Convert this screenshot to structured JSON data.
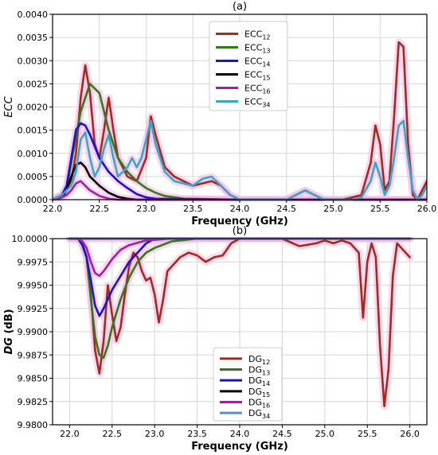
{
  "chart_data": [
    {
      "type": "line",
      "title": "(a)",
      "xlabel": "Frequency (GHz)",
      "ylabel": "ECC",
      "xlim": [
        22.0,
        26.0
      ],
      "ylim": [
        0,
        0.004
      ],
      "xticks": [
        22.0,
        22.5,
        23.0,
        23.5,
        24.0,
        24.5,
        25.0,
        25.5,
        26.0
      ],
      "xtick_labels": [
        "22.0",
        "22.5",
        "23.0",
        "23.5",
        "24.0",
        "24.5",
        "25.0",
        "25.5",
        "26.0"
      ],
      "yticks": [
        0,
        0.0005,
        0.001,
        0.0015,
        0.002,
        0.0025,
        0.003,
        0.0035,
        0.004
      ],
      "ytick_labels": [
        "0.0000",
        "0.0005",
        "0.0010",
        "0.0015",
        "0.0020",
        "0.0025",
        "0.0030",
        "0.0035",
        "0.0040"
      ],
      "grid": true,
      "legend_position": "top-center",
      "series": [
        {
          "name": "ECC",
          "sub": "12",
          "color": "#a52a1a",
          "x": [
            22.0,
            22.1,
            22.2,
            22.25,
            22.3,
            22.35,
            22.4,
            22.45,
            22.5,
            22.55,
            22.6,
            22.65,
            22.7,
            22.8,
            22.9,
            23.0,
            23.05,
            23.1,
            23.2,
            23.3,
            23.5,
            23.6,
            23.7,
            23.8,
            23.9,
            24.0,
            24.3,
            24.5,
            24.7,
            24.9,
            25.1,
            25.2,
            25.3,
            25.4,
            25.45,
            25.5,
            25.55,
            25.6,
            25.65,
            25.7,
            25.75,
            25.8,
            25.85,
            25.9,
            25.95,
            26.0
          ],
          "y": [
            0,
            0.0001,
            0.0004,
            0.001,
            0.0022,
            0.0029,
            0.0023,
            0.0012,
            0.0009,
            0.0015,
            0.0022,
            0.0015,
            0.0009,
            0.0005,
            0.0004,
            0.0009,
            0.0018,
            0.0014,
            0.0007,
            0.0005,
            0.0003,
            0.00035,
            0.0004,
            0.0003,
            0.0001,
            0,
            0,
            0,
            0.0002,
            0,
            0,
            5e-05,
            0.0001,
            0.0008,
            0.0016,
            0.0012,
            0.0002,
            0.0004,
            0.0018,
            0.0034,
            0.0033,
            0.0012,
            0.0001,
            0,
            0.0002,
            0.0004
          ]
        },
        {
          "name": "ECC",
          "sub": "13",
          "color": "#2e7d14",
          "x": [
            22.0,
            22.1,
            22.15,
            22.2,
            22.3,
            22.4,
            22.5,
            22.6,
            22.7,
            22.8,
            22.9,
            23.0,
            23.1,
            23.2,
            23.4,
            24.0,
            26.0
          ],
          "y": [
            0,
            0.0001,
            0.0002,
            0.0008,
            0.0019,
            0.0025,
            0.0023,
            0.0015,
            0.0009,
            0.0006,
            0.0004,
            0.00025,
            0.00015,
            8e-05,
            2e-05,
            0,
            0
          ]
        },
        {
          "name": "ECC",
          "sub": "14",
          "color": "#1515cc",
          "x": [
            22.0,
            22.1,
            22.15,
            22.2,
            22.25,
            22.3,
            22.35,
            22.4,
            22.5,
            22.6,
            22.7,
            22.8,
            22.9,
            23.0,
            23.1,
            24.0,
            26.0
          ],
          "y": [
            0,
            0.0001,
            0.0003,
            0.0009,
            0.0015,
            0.00165,
            0.0016,
            0.0014,
            0.0009,
            0.0006,
            0.0004,
            0.00025,
            0.00012,
            5e-05,
            2e-05,
            0,
            0
          ]
        },
        {
          "name": "ECC",
          "sub": "15",
          "color": "#000000",
          "x": [
            22.0,
            22.1,
            22.15,
            22.2,
            22.25,
            22.3,
            22.35,
            22.4,
            22.5,
            22.6,
            22.7,
            22.8,
            22.9,
            23.0,
            26.0
          ],
          "y": [
            0,
            5e-05,
            0.0002,
            0.0005,
            0.00075,
            0.0008,
            0.0007,
            0.0005,
            0.0003,
            0.00015,
            6e-05,
            2e-05,
            0,
            0,
            0
          ]
        },
        {
          "name": "ECC",
          "sub": "16",
          "color": "#a020a0",
          "x": [
            22.0,
            22.1,
            22.15,
            22.2,
            22.25,
            22.3,
            22.35,
            22.4,
            22.5,
            22.6,
            22.7,
            22.8,
            26.0
          ],
          "y": [
            0,
            5e-05,
            0.0001,
            0.0002,
            0.00035,
            0.0004,
            0.0003,
            0.0002,
            8e-05,
            2e-05,
            0,
            0,
            0
          ]
        },
        {
          "name": "ECC",
          "sub": "34",
          "color": "#35a8c8",
          "x": [
            22.0,
            22.1,
            22.2,
            22.25,
            22.3,
            22.35,
            22.4,
            22.45,
            22.5,
            22.55,
            22.6,
            22.65,
            22.7,
            22.8,
            22.85,
            22.9,
            22.95,
            23.0,
            23.05,
            23.1,
            23.2,
            23.3,
            23.5,
            23.6,
            23.7,
            23.8,
            23.9,
            24.0,
            24.3,
            24.5,
            24.7,
            24.9,
            25.1,
            25.2,
            25.3,
            25.4,
            25.45,
            25.5,
            25.55,
            25.6,
            25.65,
            25.7,
            25.75,
            25.8,
            25.85,
            25.9,
            25.95,
            26.0
          ],
          "y": [
            0,
            0.0001,
            0.0003,
            0.0006,
            0.0013,
            0.00145,
            0.0009,
            0.0005,
            0.0007,
            0.0011,
            0.0014,
            0.0009,
            0.0005,
            0.0007,
            0.0009,
            0.0007,
            0.0009,
            0.0013,
            0.0017,
            0.0012,
            0.0006,
            0.0004,
            0.0003,
            0.00045,
            0.0005,
            0.0003,
            0.0001,
            0,
            0,
            0,
            0.0002,
            0,
            0,
            0,
            5e-05,
            0.0004,
            0.0008,
            0.0005,
            0.0001,
            0.0003,
            0.0009,
            0.0016,
            0.0017,
            0.0009,
            0.0002,
            0,
            0.0001,
            0.0003
          ]
        }
      ]
    },
    {
      "type": "line",
      "title": "(b)",
      "xlabel": "Frequency (GHz)",
      "ylabel": "DG (dB)",
      "xlim": [
        21.8,
        26.2
      ],
      "ylim": [
        9.98,
        10.0
      ],
      "xticks": [
        22.0,
        22.5,
        23.0,
        23.5,
        24.0,
        24.5,
        25.0,
        25.5,
        26.0
      ],
      "xtick_labels": [
        "22.0",
        "22.5",
        "23.0",
        "23.5",
        "24.0",
        "24.5",
        "25.0",
        "25.5",
        "26.0"
      ],
      "yticks": [
        9.98,
        9.9825,
        9.985,
        9.9875,
        9.99,
        9.9925,
        9.995,
        9.9975,
        10.0
      ],
      "ytick_labels": [
        "9.9800",
        "9.9825",
        "9.9850",
        "9.9875",
        "9.9900",
        "9.9925",
        "9.9950",
        "9.9975",
        "10.0000"
      ],
      "grid": true,
      "legend_position": "lower-center",
      "series": [
        {
          "name": "DG",
          "sub": "12",
          "color": "#a52a1a",
          "x": [
            22.0,
            22.1,
            22.15,
            22.2,
            22.25,
            22.3,
            22.35,
            22.4,
            22.45,
            22.5,
            22.55,
            22.6,
            22.65,
            22.7,
            22.75,
            22.8,
            22.85,
            22.9,
            22.95,
            23.0,
            23.05,
            23.1,
            23.15,
            23.2,
            23.3,
            23.4,
            23.5,
            23.6,
            23.7,
            23.8,
            23.9,
            24.0,
            24.5,
            24.7,
            24.9,
            25.0,
            25.1,
            25.2,
            25.3,
            25.4,
            25.45,
            25.5,
            25.55,
            25.6,
            25.65,
            25.7,
            25.75,
            25.8,
            25.85,
            25.9,
            25.95,
            26.0
          ],
          "y": [
            10.0,
            10.0,
            9.9995,
            9.998,
            9.994,
            9.988,
            9.9855,
            9.989,
            9.995,
            9.9918,
            9.989,
            9.9905,
            9.994,
            9.997,
            9.9985,
            9.998,
            9.9965,
            9.9955,
            9.9958,
            9.994,
            9.991,
            9.9935,
            9.9965,
            9.997,
            9.998,
            9.9985,
            9.9982,
            9.9975,
            9.998,
            9.9982,
            9.9995,
            10.0,
            10.0,
            9.9992,
            9.9995,
            9.9998,
            9.9995,
            9.9998,
            9.9995,
            9.9985,
            9.9915,
            9.9975,
            9.9995,
            9.998,
            9.9885,
            9.982,
            9.986,
            9.996,
            9.9995,
            9.999,
            9.9985,
            9.998
          ]
        },
        {
          "name": "DG",
          "sub": "13",
          "color": "#2e7d14",
          "x": [
            22.0,
            22.1,
            22.15,
            22.2,
            22.25,
            22.3,
            22.35,
            22.4,
            22.45,
            22.5,
            22.6,
            22.7,
            22.8,
            22.9,
            23.0,
            23.2,
            23.5,
            24.0,
            26.0
          ],
          "y": [
            10.0,
            10.0,
            9.9995,
            9.998,
            9.9935,
            9.9895,
            9.9875,
            9.9872,
            9.9885,
            9.9905,
            9.9935,
            9.9958,
            9.9975,
            9.9985,
            9.999,
            9.9997,
            10.0,
            10.0,
            10.0
          ]
        },
        {
          "name": "DG",
          "sub": "14",
          "color": "#1515cc",
          "x": [
            22.0,
            22.1,
            22.15,
            22.2,
            22.25,
            22.3,
            22.35,
            22.4,
            22.5,
            22.6,
            22.7,
            22.8,
            22.9,
            23.0,
            23.2,
            24.0,
            26.0
          ],
          "y": [
            10.0,
            10.0,
            9.9993,
            9.998,
            9.9955,
            9.9928,
            9.9917,
            9.9925,
            9.9945,
            9.996,
            9.9975,
            9.9985,
            9.9995,
            10.0,
            10.0,
            10.0,
            10.0
          ]
        },
        {
          "name": "DG",
          "sub": "15",
          "color": "#000000",
          "x": [
            22.0,
            26.0
          ],
          "y": [
            10.0,
            10.0
          ]
        },
        {
          "name": "DG",
          "sub": "16",
          "color": "#a020a0",
          "x": [
            22.0,
            22.1,
            22.15,
            22.2,
            22.25,
            22.3,
            22.35,
            22.4,
            22.5,
            22.6,
            22.7,
            22.9,
            23.2,
            24.0,
            26.0
          ],
          "y": [
            10.0,
            10.0,
            9.9997,
            9.999,
            9.9975,
            9.9963,
            9.996,
            9.9965,
            9.9978,
            9.9988,
            9.9993,
            9.9998,
            10.0,
            10.0,
            10.0
          ]
        },
        {
          "name": "DG",
          "sub": "34",
          "color": "#5f8fc0",
          "x": [
            22.0,
            26.0
          ],
          "y": [
            10.0,
            10.0
          ]
        }
      ]
    }
  ]
}
